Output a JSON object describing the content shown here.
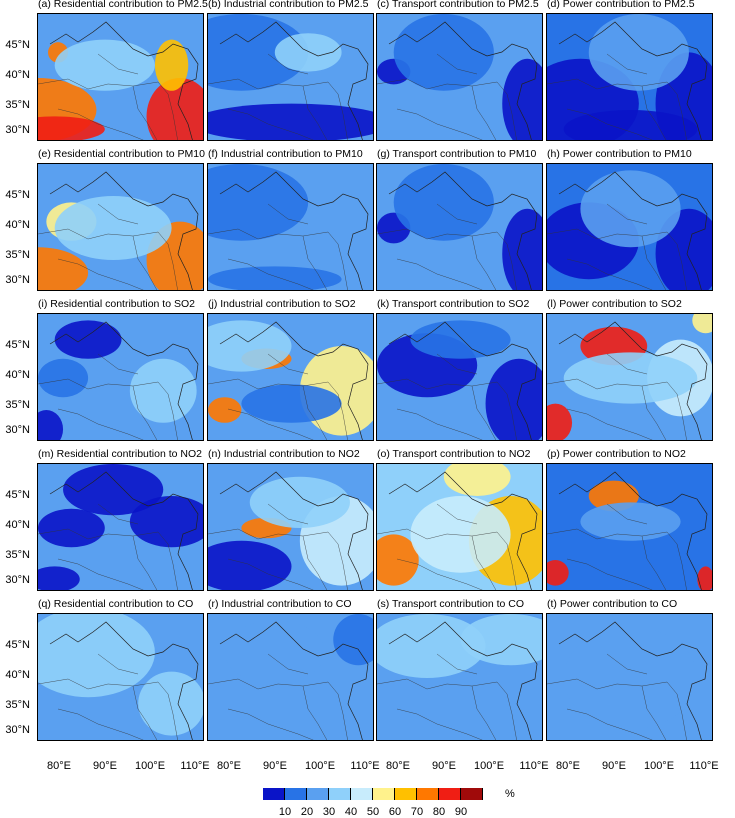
{
  "figure": {
    "colors": [
      "#0a14c8",
      "#2873e6",
      "#5aa0f0",
      "#8fd0fa",
      "#c8ecfc",
      "#fff28c",
      "#ffc000",
      "#ff7800",
      "#f01e14",
      "#a00a0a"
    ],
    "colorbar_labels": [
      "10",
      "20",
      "30",
      "40",
      "50",
      "60",
      "70",
      "80",
      "90"
    ],
    "colorbar_unit": "%",
    "lat_labels": [
      "45°N",
      "40°N",
      "35°N",
      "30°N"
    ],
    "lon_labels": [
      "80°E",
      "90°E",
      "100°E",
      "110°E"
    ]
  },
  "panels": [
    {
      "title": "(a) Residential contribution to PM2.5",
      "base": 2,
      "blobs": [
        [
          0.0,
          0.75,
          0.35,
          0.25,
          7
        ],
        [
          0.1,
          0.9,
          0.3,
          0.1,
          8
        ],
        [
          0.85,
          0.8,
          0.2,
          0.3,
          8
        ],
        [
          0.12,
          0.3,
          0.06,
          0.08,
          7
        ],
        [
          0.8,
          0.4,
          0.1,
          0.2,
          6
        ],
        [
          0.4,
          0.4,
          0.3,
          0.2,
          3
        ]
      ]
    },
    {
      "title": "(b) Industrial contribution to PM2.5",
      "base": 2,
      "blobs": [
        [
          0.2,
          0.3,
          0.4,
          0.3,
          1
        ],
        [
          0.5,
          0.85,
          0.6,
          0.15,
          0
        ],
        [
          0.6,
          0.3,
          0.2,
          0.15,
          3
        ]
      ]
    },
    {
      "title": "(c) Transport contribution to PM2.5",
      "base": 2,
      "blobs": [
        [
          0.9,
          0.7,
          0.15,
          0.35,
          0
        ],
        [
          0.1,
          0.45,
          0.1,
          0.1,
          0
        ],
        [
          0.4,
          0.3,
          0.3,
          0.3,
          1
        ]
      ]
    },
    {
      "title": "(d) Power contribution to PM2.5",
      "base": 1,
      "blobs": [
        [
          0.2,
          0.7,
          0.35,
          0.35,
          0
        ],
        [
          0.85,
          0.7,
          0.2,
          0.4,
          0
        ],
        [
          0.5,
          0.9,
          0.4,
          0.15,
          0
        ],
        [
          0.55,
          0.3,
          0.3,
          0.3,
          2
        ]
      ]
    },
    {
      "title": "(e) Residential contribution to PM10",
      "base": 2,
      "blobs": [
        [
          0.0,
          0.85,
          0.3,
          0.2,
          7
        ],
        [
          0.85,
          0.75,
          0.2,
          0.3,
          7
        ],
        [
          0.2,
          0.45,
          0.15,
          0.15,
          5
        ],
        [
          0.45,
          0.5,
          0.35,
          0.25,
          3
        ]
      ]
    },
    {
      "title": "(f) Industrial contribution to PM10",
      "base": 2,
      "blobs": [
        [
          0.2,
          0.3,
          0.4,
          0.3,
          1
        ],
        [
          0.4,
          0.9,
          0.4,
          0.1,
          1
        ]
      ]
    },
    {
      "title": "(g) Transport contribution to PM10",
      "base": 2,
      "blobs": [
        [
          0.9,
          0.7,
          0.15,
          0.35,
          0
        ],
        [
          0.1,
          0.5,
          0.1,
          0.12,
          0
        ],
        [
          0.4,
          0.3,
          0.3,
          0.3,
          1
        ]
      ]
    },
    {
      "title": "(h) Power contribution to PM10",
      "base": 1,
      "blobs": [
        [
          0.25,
          0.6,
          0.3,
          0.3,
          0
        ],
        [
          0.85,
          0.7,
          0.2,
          0.35,
          0
        ],
        [
          0.5,
          0.35,
          0.3,
          0.3,
          2
        ]
      ]
    },
    {
      "title": "(i) Residential contribution to SO2",
      "base": 2,
      "blobs": [
        [
          0.3,
          0.2,
          0.2,
          0.15,
          0
        ],
        [
          0.15,
          0.5,
          0.15,
          0.15,
          1
        ],
        [
          0.05,
          0.9,
          0.1,
          0.15,
          0
        ],
        [
          0.75,
          0.6,
          0.2,
          0.25,
          3
        ]
      ]
    },
    {
      "title": "(j) Industrial contribution to SO2",
      "base": 2,
      "blobs": [
        [
          0.35,
          0.35,
          0.15,
          0.08,
          7
        ],
        [
          0.8,
          0.6,
          0.25,
          0.35,
          5
        ],
        [
          0.1,
          0.75,
          0.1,
          0.1,
          7
        ],
        [
          0.2,
          0.25,
          0.3,
          0.2,
          3
        ],
        [
          0.5,
          0.7,
          0.3,
          0.15,
          1
        ]
      ]
    },
    {
      "title": "(k) Transport contribution to SO2",
      "base": 2,
      "blobs": [
        [
          0.3,
          0.4,
          0.3,
          0.25,
          0
        ],
        [
          0.85,
          0.7,
          0.2,
          0.35,
          0
        ],
        [
          0.5,
          0.2,
          0.3,
          0.15,
          1
        ]
      ]
    },
    {
      "title": "(l) Power contribution to SO2",
      "base": 2,
      "blobs": [
        [
          0.4,
          0.25,
          0.2,
          0.15,
          8
        ],
        [
          0.05,
          0.85,
          0.1,
          0.15,
          8
        ],
        [
          0.8,
          0.5,
          0.2,
          0.3,
          4
        ],
        [
          0.5,
          0.5,
          0.4,
          0.2,
          3
        ],
        [
          0.95,
          0.05,
          0.08,
          0.1,
          5
        ]
      ]
    },
    {
      "title": "(m) Residential contribution to NO2",
      "base": 2,
      "blobs": [
        [
          0.45,
          0.2,
          0.3,
          0.2,
          0
        ],
        [
          0.8,
          0.45,
          0.25,
          0.2,
          0
        ],
        [
          0.2,
          0.5,
          0.2,
          0.15,
          0
        ],
        [
          0.1,
          0.9,
          0.15,
          0.1,
          0
        ]
      ]
    },
    {
      "title": "(n) Industrial contribution to NO2",
      "base": 2,
      "blobs": [
        [
          0.35,
          0.5,
          0.15,
          0.08,
          7
        ],
        [
          0.8,
          0.6,
          0.25,
          0.35,
          4
        ],
        [
          0.2,
          0.8,
          0.3,
          0.2,
          0
        ],
        [
          0.55,
          0.3,
          0.3,
          0.2,
          3
        ]
      ]
    },
    {
      "title": "(o) Transport contribution to NO2",
      "base": 3,
      "blobs": [
        [
          0.1,
          0.75,
          0.15,
          0.2,
          7
        ],
        [
          0.8,
          0.6,
          0.25,
          0.35,
          6
        ],
        [
          0.6,
          0.1,
          0.2,
          0.15,
          5
        ],
        [
          0.5,
          0.55,
          0.3,
          0.3,
          4
        ]
      ]
    },
    {
      "title": "(p) Power contribution to NO2",
      "base": 1,
      "blobs": [
        [
          0.4,
          0.25,
          0.15,
          0.12,
          7
        ],
        [
          0.05,
          0.85,
          0.08,
          0.1,
          8
        ],
        [
          0.5,
          0.45,
          0.3,
          0.15,
          2
        ],
        [
          0.95,
          0.9,
          0.05,
          0.1,
          8
        ]
      ]
    },
    {
      "title": "(q) Residential contribution to CO",
      "base": 2,
      "blobs": [
        [
          0.3,
          0.3,
          0.4,
          0.35,
          3
        ],
        [
          0.8,
          0.7,
          0.2,
          0.25,
          3
        ]
      ]
    },
    {
      "title": "(r) Industrial contribution to CO",
      "base": 2,
      "blobs": [
        [
          0.4,
          0.3,
          0.3,
          0.25,
          2
        ],
        [
          0.9,
          0.2,
          0.15,
          0.2,
          1
        ]
      ]
    },
    {
      "title": "(s) Transport contribution to CO",
      "base": 2,
      "blobs": [
        [
          0.3,
          0.25,
          0.35,
          0.25,
          3
        ],
        [
          0.8,
          0.2,
          0.3,
          0.2,
          3
        ]
      ]
    },
    {
      "title": "(t) Power contribution to CO",
      "base": 2,
      "blobs": [
        [
          0.5,
          0.5,
          0.4,
          0.4,
          2
        ]
      ]
    }
  ]
}
